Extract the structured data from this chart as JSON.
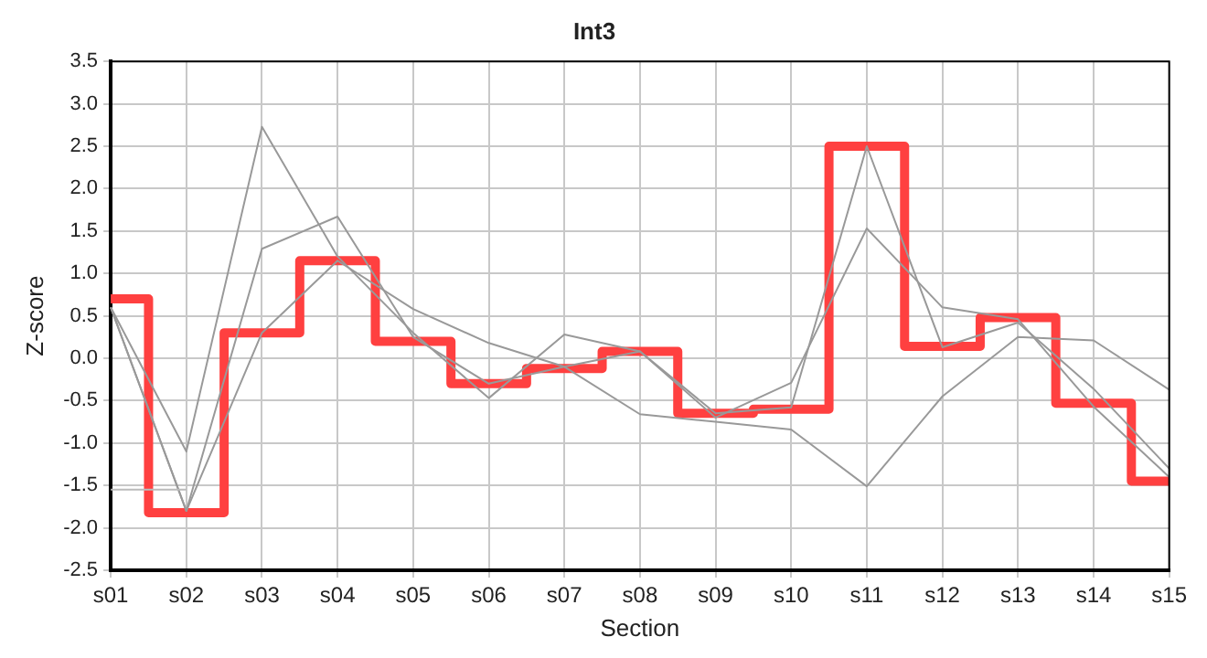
{
  "chart_data": {
    "type": "line",
    "title": "Int3",
    "xlabel": "Section",
    "ylabel": "Z-score",
    "categories": [
      "s01",
      "s02",
      "s03",
      "s04",
      "s05",
      "s06",
      "s07",
      "s08",
      "s09",
      "s10",
      "s11",
      "s12",
      "s13",
      "s14",
      "s15"
    ],
    "ylim": [
      -2.5,
      3.5
    ],
    "yticks": [
      {
        "value": -2.5,
        "label": "-2.5"
      },
      {
        "value": -2,
        "label": "-2.0"
      },
      {
        "value": -1.5,
        "label": "-1.5"
      },
      {
        "value": -1,
        "label": "-1.0"
      },
      {
        "value": -0.5,
        "label": "-0.5"
      },
      {
        "value": 0,
        "label": "0.0"
      },
      {
        "value": 0.5,
        "label": "0.5"
      },
      {
        "value": 1,
        "label": "1.0"
      },
      {
        "value": 1.5,
        "label": "1.5"
      },
      {
        "value": 2,
        "label": "2.0"
      },
      {
        "value": 2.5,
        "label": "2.5"
      },
      {
        "value": 3,
        "label": "3.0"
      },
      {
        "value": 3.5,
        "label": "3.5"
      }
    ],
    "grid": true,
    "legend": false,
    "marker": "none",
    "series": [
      {
        "type": "line",
        "color": "#bbbbbb",
        "values": [
          -1.55,
          -1.55,
          null,
          null,
          null,
          null,
          null,
          null,
          null,
          null,
          null,
          null,
          null,
          null,
          null
        ]
      },
      {
        "type": "line",
        "color": "#999999",
        "values": [
          0.6,
          -1.1,
          2.73,
          1.2,
          0.3,
          -0.47,
          0.28,
          0.08,
          -0.65,
          -0.58,
          2.5,
          0.13,
          0.42,
          -0.36,
          -1.3
        ]
      },
      {
        "type": "line",
        "color": "#999999",
        "values": [
          0.6,
          -1.8,
          1.29,
          1.67,
          0.25,
          -0.3,
          -0.1,
          0.08,
          -0.7,
          -0.29,
          1.53,
          0.6,
          0.46,
          -0.57,
          -1.4
        ]
      },
      {
        "type": "line",
        "color": "#999999",
        "values": [
          0.6,
          -1.8,
          0.3,
          1.15,
          0.58,
          0.18,
          -0.1,
          -0.66,
          -0.75,
          -0.84,
          -1.51,
          -0.45,
          0.25,
          0.21,
          -0.37
        ]
      },
      {
        "type": "step",
        "color": "#ff4040",
        "values": [
          0.7,
          -1.82,
          0.3,
          1.15,
          0.2,
          -0.3,
          -0.12,
          0.08,
          -0.65,
          -0.6,
          2.5,
          0.14,
          0.48,
          -0.53,
          -1.45
        ]
      }
    ]
  }
}
